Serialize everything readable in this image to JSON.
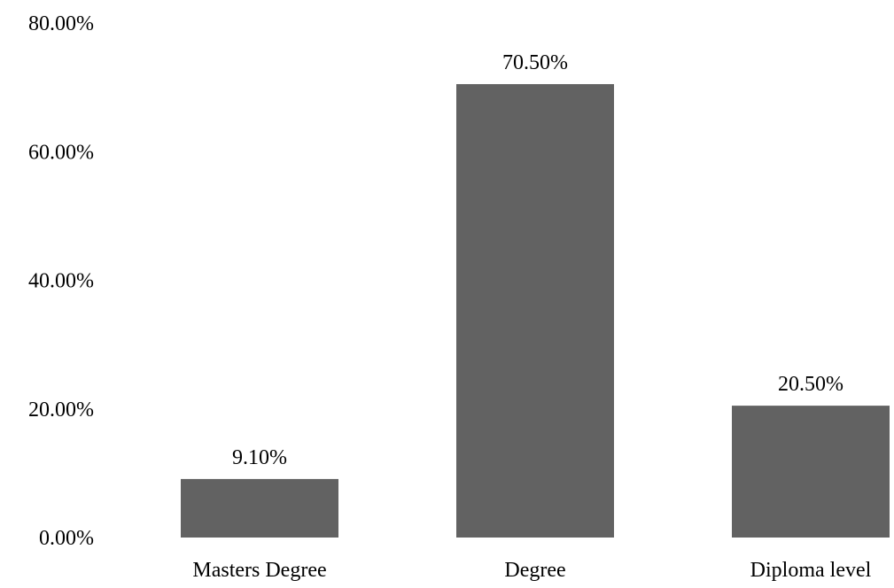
{
  "chart_data": {
    "type": "bar",
    "categories": [
      "Masters Degree",
      "Degree",
      "Diploma level"
    ],
    "values": [
      9.1,
      70.5,
      20.5
    ],
    "data_labels": [
      "9.10%",
      "70.50%",
      "20.50%"
    ],
    "y_ticks": [
      0,
      20,
      40,
      60,
      80
    ],
    "y_tick_labels": [
      "0.00%",
      "20.00%",
      "40.00%",
      "60.00%",
      "80.00%"
    ],
    "ylim": [
      0,
      80
    ],
    "grid": false,
    "legend": "none",
    "bar_color": "#626262",
    "text_color": "#000000"
  }
}
